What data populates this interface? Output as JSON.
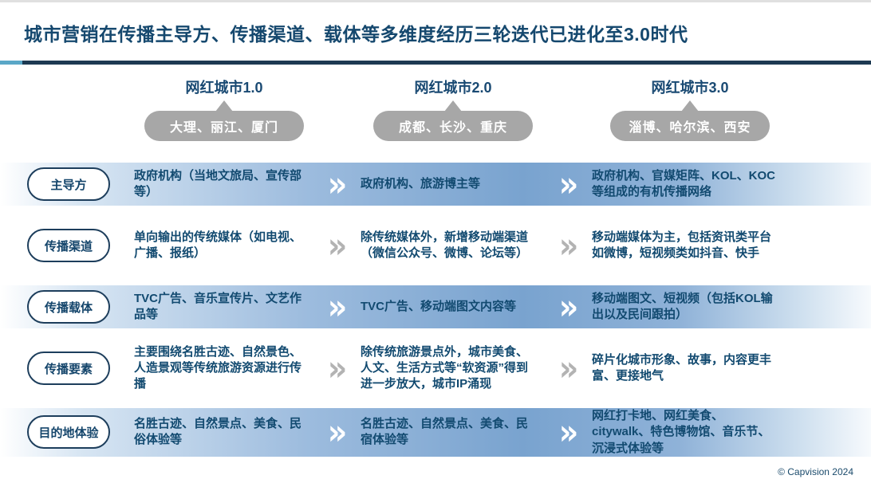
{
  "title": "城市营销在传播主导方、传播渠道、载体等多维度经历三轮迭代已进化至3.0时代",
  "columns": [
    {
      "header": "网红城市1.0",
      "cities": "大理、丽江、厦门"
    },
    {
      "header": "网红城市2.0",
      "cities": "成都、长沙、重庆"
    },
    {
      "header": "网红城市3.0",
      "cities": "淄博、哈尔滨、西安"
    }
  ],
  "rows": [
    {
      "label": "主导方",
      "highlight": true,
      "cells": [
        "政府机构（当地文旅局、宣传部等）",
        "政府机构、旅游博主等",
        "政府机构、官媒矩阵、KOL、KOC等组成的有机传播网络"
      ]
    },
    {
      "label": "传播渠道",
      "highlight": false,
      "cells": [
        "单向输出的传统媒体（如电视、广播、报纸）",
        "除传统媒体外，新增移动端渠道（微信公众号、微博、论坛等）",
        "移动端媒体为主，包括资讯类平台如微博，短视频类如抖音、快手"
      ]
    },
    {
      "label": "传播载体",
      "highlight": true,
      "cells": [
        "TVC广告、音乐宣传片、文艺作品等",
        "TVC广告、移动端图文内容等",
        "移动端图文、短视频（包括KOL输出以及民间跟拍）"
      ]
    },
    {
      "label": "传播要素",
      "highlight": false,
      "cells": [
        "主要围绕名胜古迹、自然景色、人造景观等传统旅游资源进行传播",
        "除传统旅游景点外，城市美食、人文、生活方式等“软资源”得到进一步放大，城市IP涌现",
        "碎片化城市形象、故事，内容更丰富、更接地气"
      ]
    },
    {
      "label": "目的地体验",
      "highlight": true,
      "cells": [
        "名胜古迹、自然景点、美食、民俗体验等",
        "名胜古迹、自然景点、美食、民宿体验等",
        "网红打卡地、网红美食、citywalk、特色博物馆、音乐节、沉浸式体验等"
      ]
    }
  ],
  "chevron_glyph": "»",
  "footer": "© Capvision 2024",
  "colors": {
    "title_text": "#15486e",
    "header_text": "#1a4a73",
    "cell_text": "#124a70",
    "divider_cyan": "#5aa7c7",
    "divider_navy": "#1d3a52",
    "band_blue": "#79a3cf",
    "city_pill_gray": "#a7a7a7",
    "chevron_on_band": "#ffffff",
    "chevron_on_plain": "#b3b3b3"
  }
}
